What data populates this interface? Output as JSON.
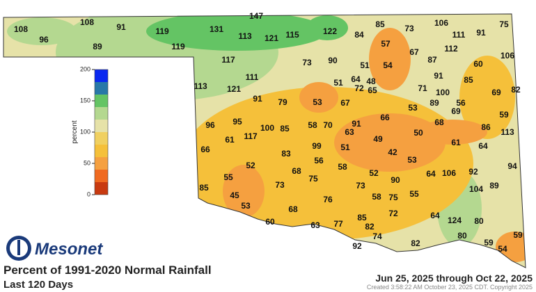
{
  "brand": "Mesonet",
  "title": "Percent of 1991-2020 Normal Rainfall",
  "subtitle": "Last 120 Days",
  "date_range": "Jun 25, 2025 through Oct 22, 2025",
  "credit": "Created 3:58:22 AM October 23, 2025 CDT. Copyright 2025",
  "colorbar": {
    "label": "percent",
    "range": [
      0,
      200
    ],
    "ticks": [
      0,
      50,
      100,
      150,
      200
    ],
    "colors": [
      "#c83a10",
      "#f06a20",
      "#f5a040",
      "#f5c03a",
      "#f0d060",
      "#e6e2a8",
      "#b4d890",
      "#64c464",
      "#2878a8",
      "#0a28f0"
    ]
  },
  "stations": [
    147,
    108,
    96,
    108,
    91,
    89,
    119,
    119,
    131,
    113,
    121,
    115,
    122,
    84,
    85,
    73,
    106,
    111,
    91,
    75,
    57,
    67,
    112,
    106,
    117,
    73,
    90,
    51,
    54,
    87,
    60,
    111,
    51,
    64,
    48,
    91,
    85,
    113,
    121,
    72,
    65,
    71,
    100,
    69,
    82,
    91,
    79,
    53,
    67,
    53,
    89,
    56,
    69,
    66,
    59,
    96,
    95,
    58,
    70,
    91,
    68,
    86,
    113,
    100,
    85,
    63,
    50,
    61,
    117,
    49,
    61,
    64,
    66,
    99,
    51,
    42,
    83,
    56,
    53,
    94,
    52,
    68,
    58,
    52,
    64,
    106,
    92,
    55,
    75,
    90,
    73,
    73,
    104,
    89,
    85,
    45,
    55,
    76,
    58,
    75,
    53,
    68,
    72,
    64,
    60,
    63,
    77,
    85,
    82,
    124,
    80,
    74,
    80,
    59,
    92,
    82,
    59,
    54
  ]
}
